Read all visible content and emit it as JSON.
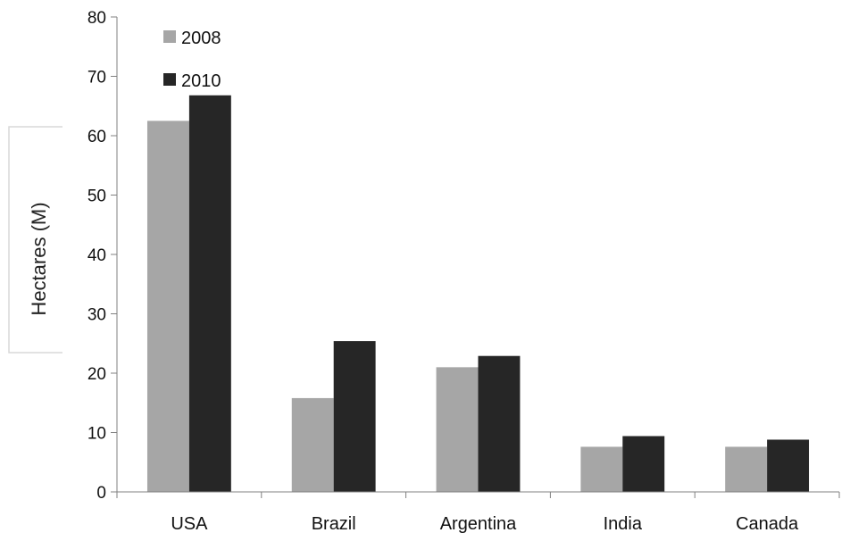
{
  "chart_data": {
    "type": "bar",
    "title": "",
    "xlabel": "",
    "ylabel": "Hectares (M)",
    "ylim": [
      0,
      80
    ],
    "yticks": [
      0,
      10,
      20,
      30,
      40,
      50,
      60,
      70,
      80
    ],
    "grid": false,
    "legend_position": "top-left",
    "categories": [
      "USA",
      "Brazil",
      "Argentina",
      "India",
      "Canada"
    ],
    "series": [
      {
        "name": "2008",
        "color": "#a6a6a6",
        "values": [
          62.5,
          15.8,
          21.0,
          7.6,
          7.6
        ]
      },
      {
        "name": "2010",
        "color": "#262626",
        "values": [
          66.8,
          25.4,
          22.9,
          9.4,
          8.8
        ]
      }
    ]
  }
}
